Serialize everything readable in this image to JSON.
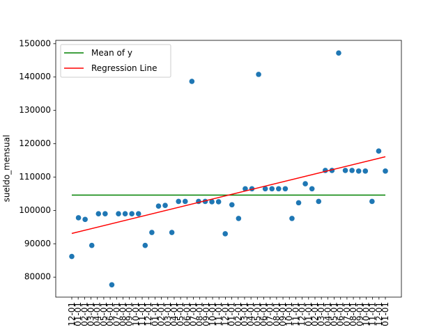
{
  "chart_data": {
    "type": "scatter",
    "title": "",
    "xlabel": "",
    "ylabel": "sueldo_mensual",
    "ylim": [
      74000,
      151000
    ],
    "yticks": [
      80000,
      90000,
      100000,
      110000,
      120000,
      130000,
      140000,
      150000
    ],
    "ytick_labels": [
      "80000",
      "90000",
      "100000",
      "110000",
      "120000",
      "130000",
      "140000",
      "150000"
    ],
    "xtick_labels": [
      "12-01",
      "01-01",
      "02-01",
      "03-01",
      "04-01",
      "05-01",
      "06-01",
      "07-01",
      "08-01",
      "09-01",
      "10-01",
      "11-01",
      "12-01",
      "01-01",
      "02-01",
      "03-01",
      "04-01",
      "05-01",
      "06-01",
      "07-01",
      "08-01",
      "09-01",
      "10-01",
      "11-01",
      "12-01",
      "01-01",
      "02-01",
      "03-01",
      "04-01",
      "05-01",
      "06-01",
      "07-01",
      "08-01",
      "09-01",
      "10-01",
      "11-01",
      "12-01",
      "01-01",
      "02-01",
      "03-01",
      "04-01",
      "05-01",
      "06-01",
      "07-01",
      "08-01",
      "09-01",
      "10-01",
      "11-01",
      "12-01",
      "01-01"
    ],
    "values": [
      86200,
      97800,
      97300,
      89500,
      99000,
      99000,
      77700,
      99000,
      99000,
      99000,
      99000,
      89500,
      93400,
      101300,
      101500,
      93400,
      102700,
      102700,
      138700,
      102700,
      102700,
      102600,
      102600,
      93000,
      101700,
      97600,
      106500,
      106500,
      140800,
      106500,
      106500,
      106500,
      106500,
      97600,
      102300,
      108000,
      106500,
      102700,
      112000,
      112000,
      147200,
      112000,
      112000,
      111800,
      111800,
      102700,
      117800,
      111800
    ],
    "mean": 104600,
    "regression": {
      "start": 93100,
      "end": 116100
    },
    "legend": {
      "position": "upper-left",
      "entries": [
        {
          "label": "Mean of y",
          "color": "#008000"
        },
        {
          "label": "Regression Line",
          "color": "#ff0000"
        }
      ]
    },
    "point_color": "#1f77b4",
    "grid": false
  }
}
